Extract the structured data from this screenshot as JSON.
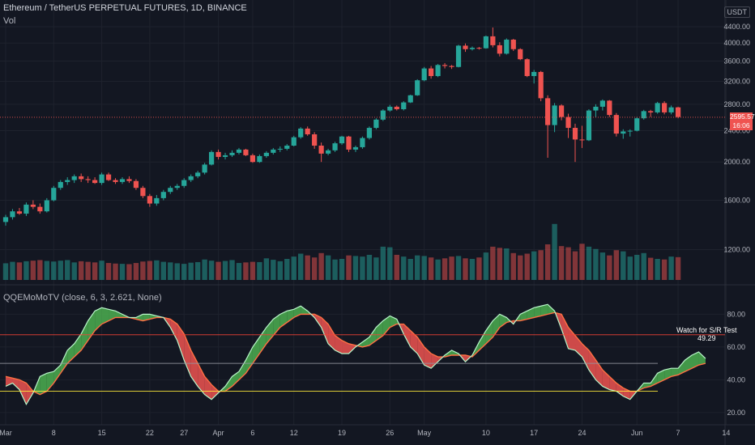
{
  "header": {
    "title": "Ethereum / TetherUS PERPETUAL FUTURES, 1D, BINANCE",
    "volume_label": "Vol",
    "currency": "USDT"
  },
  "indicator": {
    "label": "QQEMoMoTV (close, 6, 3, 2.621, None)"
  },
  "last_price": {
    "value": "2595.57",
    "countdown": "16:06",
    "price": 2595.57
  },
  "annotation": {
    "line1": "Watch for S/R Test",
    "line2": "49.29"
  },
  "colors": {
    "up": "#26a69a",
    "down": "#ef5350",
    "bull_fill": "#4caf50",
    "bear_fill": "#ef5350",
    "upper_level": "#f44336",
    "lower_level": "#ffeb3b",
    "mid_level": "#9598a1"
  },
  "chart_data": [
    {
      "type": "candlestick",
      "title": "Ethereum / TetherUS PERPETUAL FUTURES, 1D, BINANCE",
      "y_scale": "log",
      "ylim": [
        1100,
        4400
      ],
      "y_ticks": [
        1200,
        1600,
        2000,
        2400,
        2800,
        3200,
        3600,
        4000,
        4400
      ],
      "y_tick_labels": [
        "1200.00",
        "1600.00",
        "2000.00",
        "2400.00",
        "2800.00",
        "3200.00",
        "3600.00",
        "4000.00",
        "4400.00"
      ],
      "x_tick_labels": [
        "Mar",
        "8",
        "15",
        "22",
        "27",
        "Apr",
        "6",
        "12",
        "19",
        "26",
        "May",
        "10",
        "17",
        "24",
        "Jun",
        "7",
        "14"
      ],
      "x_tick_day_index": [
        0,
        7,
        14,
        21,
        26,
        31,
        36,
        42,
        49,
        56,
        61,
        70,
        77,
        84,
        92,
        98,
        105
      ],
      "ohlc": [
        [
          1410,
          1470,
          1380,
          1450
        ],
        [
          1450,
          1520,
          1430,
          1500
        ],
        [
          1500,
          1530,
          1470,
          1480
        ],
        [
          1480,
          1580,
          1460,
          1560
        ],
        [
          1560,
          1600,
          1520,
          1540
        ],
        [
          1540,
          1570,
          1480,
          1500
        ],
        [
          1500,
          1620,
          1490,
          1600
        ],
        [
          1600,
          1740,
          1590,
          1720
        ],
        [
          1720,
          1800,
          1700,
          1780
        ],
        [
          1780,
          1830,
          1750,
          1800
        ],
        [
          1800,
          1860,
          1770,
          1840
        ],
        [
          1840,
          1870,
          1780,
          1810
        ],
        [
          1810,
          1840,
          1770,
          1800
        ],
        [
          1800,
          1830,
          1760,
          1770
        ],
        [
          1770,
          1880,
          1750,
          1860
        ],
        [
          1860,
          1880,
          1790,
          1800
        ],
        [
          1800,
          1820,
          1760,
          1780
        ],
        [
          1780,
          1830,
          1760,
          1810
        ],
        [
          1810,
          1840,
          1770,
          1790
        ],
        [
          1790,
          1810,
          1700,
          1720
        ],
        [
          1720,
          1740,
          1620,
          1640
        ],
        [
          1640,
          1660,
          1540,
          1570
        ],
        [
          1570,
          1650,
          1550,
          1620
        ],
        [
          1620,
          1700,
          1600,
          1680
        ],
        [
          1680,
          1740,
          1660,
          1720
        ],
        [
          1720,
          1760,
          1700,
          1740
        ],
        [
          1740,
          1820,
          1720,
          1800
        ],
        [
          1800,
          1860,
          1780,
          1840
        ],
        [
          1840,
          1900,
          1820,
          1880
        ],
        [
          1880,
          1990,
          1860,
          1970
        ],
        [
          1970,
          2140,
          1960,
          2120
        ],
        [
          2120,
          2150,
          2030,
          2060
        ],
        [
          2060,
          2110,
          2030,
          2080
        ],
        [
          2080,
          2140,
          2060,
          2110
        ],
        [
          2110,
          2170,
          2090,
          2150
        ],
        [
          2150,
          2160,
          2070,
          2080
        ],
        [
          2080,
          2100,
          1990,
          2000
        ],
        [
          2000,
          2090,
          1990,
          2070
        ],
        [
          2070,
          2130,
          2050,
          2110
        ],
        [
          2110,
          2170,
          2090,
          2150
        ],
        [
          2150,
          2190,
          2120,
          2160
        ],
        [
          2160,
          2220,
          2140,
          2200
        ],
        [
          2200,
          2330,
          2190,
          2310
        ],
        [
          2310,
          2450,
          2290,
          2430
        ],
        [
          2430,
          2460,
          2330,
          2350
        ],
        [
          2350,
          2380,
          2160,
          2200
        ],
        [
          2200,
          2240,
          2000,
          2100
        ],
        [
          2100,
          2160,
          2080,
          2140
        ],
        [
          2140,
          2250,
          2120,
          2230
        ],
        [
          2230,
          2330,
          2210,
          2320
        ],
        [
          2320,
          2330,
          2120,
          2150
        ],
        [
          2150,
          2200,
          2120,
          2180
        ],
        [
          2180,
          2320,
          2160,
          2300
        ],
        [
          2300,
          2460,
          2280,
          2440
        ],
        [
          2440,
          2580,
          2420,
          2560
        ],
        [
          2560,
          2720,
          2540,
          2700
        ],
        [
          2700,
          2790,
          2680,
          2760
        ],
        [
          2760,
          2780,
          2700,
          2720
        ],
        [
          2720,
          2850,
          2700,
          2830
        ],
        [
          2830,
          2960,
          2820,
          2950
        ],
        [
          2950,
          3240,
          2940,
          3220
        ],
        [
          3220,
          3480,
          3200,
          3450
        ],
        [
          3450,
          3500,
          3250,
          3300
        ],
        [
          3300,
          3540,
          3280,
          3520
        ],
        [
          3520,
          3560,
          3450,
          3500
        ],
        [
          3500,
          3520,
          3440,
          3480
        ],
        [
          3480,
          3960,
          3470,
          3940
        ],
        [
          3940,
          3990,
          3800,
          3860
        ],
        [
          3860,
          3920,
          3830,
          3890
        ],
        [
          3890,
          3910,
          3850,
          3880
        ],
        [
          3880,
          4180,
          3870,
          4160
        ],
        [
          4160,
          4380,
          3900,
          3950
        ],
        [
          3950,
          4020,
          3700,
          3760
        ],
        [
          3760,
          4110,
          3740,
          4080
        ],
        [
          4080,
          4100,
          3820,
          3860
        ],
        [
          3860,
          3880,
          3620,
          3640
        ],
        [
          3640,
          3660,
          3280,
          3300
        ],
        [
          3300,
          3420,
          3160,
          3380
        ],
        [
          3380,
          3400,
          2850,
          2900
        ],
        [
          2900,
          2950,
          2050,
          2480
        ],
        [
          2480,
          2820,
          2380,
          2780
        ],
        [
          2780,
          2800,
          2550,
          2600
        ],
        [
          2600,
          2650,
          2300,
          2440
        ],
        [
          2440,
          2500,
          2000,
          2280
        ],
        [
          2280,
          2470,
          2170,
          2270
        ],
        [
          2270,
          2720,
          2260,
          2700
        ],
        [
          2700,
          2800,
          2600,
          2760
        ],
        [
          2760,
          2880,
          2700,
          2860
        ],
        [
          2860,
          2870,
          2600,
          2630
        ],
        [
          2630,
          2660,
          2320,
          2360
        ],
        [
          2360,
          2420,
          2290,
          2390
        ],
        [
          2390,
          2420,
          2320,
          2400
        ],
        [
          2400,
          2600,
          2390,
          2580
        ],
        [
          2580,
          2710,
          2560,
          2690
        ],
        [
          2690,
          2710,
          2600,
          2670
        ],
        [
          2670,
          2840,
          2650,
          2820
        ],
        [
          2820,
          2850,
          2640,
          2670
        ],
        [
          2670,
          2780,
          2640,
          2750
        ],
        [
          2750,
          2760,
          2580,
          2600
        ]
      ]
    },
    {
      "type": "bar",
      "title": "Vol",
      "values": [
        35,
        40,
        38,
        42,
        44,
        46,
        43,
        41,
        44,
        46,
        38,
        42,
        40,
        38,
        44,
        36,
        34,
        33,
        32,
        36,
        41,
        43,
        45,
        40,
        38,
        35,
        33,
        37,
        39,
        48,
        44,
        40,
        43,
        46,
        36,
        38,
        40,
        39,
        52,
        47,
        42,
        50,
        58,
        68,
        62,
        55,
        70,
        62,
        48,
        50,
        62,
        60,
        58,
        64,
        55,
        92,
        90,
        64,
        58,
        50,
        62,
        60,
        55,
        48,
        52,
        58,
        60,
        52,
        50,
        55,
        72,
        92,
        88,
        86,
        70,
        62,
        68,
        76,
        80,
        100,
        170,
        94,
        90,
        76,
        102,
        92,
        84,
        72,
        62,
        80,
        76,
        58,
        64,
        70,
        54,
        50,
        48,
        58,
        56
      ]
    },
    {
      "type": "area",
      "title": "QQEMoMoTV (close, 6, 3, 2.621, None)",
      "ylim": [
        15,
        95
      ],
      "y_ticks": [
        20,
        40,
        60,
        80
      ],
      "y_tick_labels": [
        "20.00",
        "40.00",
        "60.00",
        "80.00"
      ],
      "levels": [
        67.5,
        50,
        33
      ],
      "series": [
        {
          "name": "",
          "values": [
            36,
            38,
            34,
            25,
            32,
            42,
            44,
            45,
            49,
            58,
            62,
            68,
            76,
            82,
            84,
            83,
            82,
            80,
            78,
            78,
            80,
            80,
            79,
            78,
            72,
            64,
            52,
            42,
            36,
            31,
            28,
            32,
            36,
            42,
            45,
            52,
            60,
            66,
            72,
            77,
            80,
            82,
            83,
            85,
            82,
            78,
            72,
            62,
            58,
            56,
            56,
            60,
            63,
            66,
            72,
            76,
            79,
            77,
            68,
            60,
            56,
            49,
            47,
            51,
            55,
            58,
            56,
            51,
            55,
            63,
            70,
            76,
            80,
            78,
            74,
            80,
            82,
            84,
            85,
            86,
            82,
            71,
            59,
            58,
            54,
            46,
            40,
            36,
            34,
            33,
            30,
            28,
            33,
            38,
            38,
            44,
            46,
            47,
            47,
            52,
            55,
            57,
            53
          ]
        },
        {
          "name": "",
          "values": [
            42,
            41,
            40,
            38,
            33,
            31,
            33,
            38,
            44,
            50,
            54,
            58,
            64,
            70,
            74,
            76,
            78,
            78,
            78,
            77,
            76,
            77,
            78,
            78,
            77,
            74,
            68,
            58,
            50,
            42,
            37,
            33,
            33,
            36,
            40,
            44,
            50,
            56,
            62,
            67,
            72,
            75,
            78,
            80,
            80,
            80,
            78,
            74,
            67,
            64,
            62,
            61,
            60,
            61,
            64,
            67,
            72,
            74,
            74,
            70,
            66,
            60,
            56,
            54,
            54,
            55,
            55,
            55,
            54,
            58,
            62,
            66,
            72,
            75,
            76,
            76,
            77,
            78,
            79,
            80,
            81,
            80,
            72,
            67,
            62,
            58,
            52,
            46,
            42,
            38,
            35,
            33,
            33,
            35,
            36,
            38,
            40,
            42,
            43,
            45,
            47,
            49,
            50
          ]
        }
      ]
    }
  ]
}
